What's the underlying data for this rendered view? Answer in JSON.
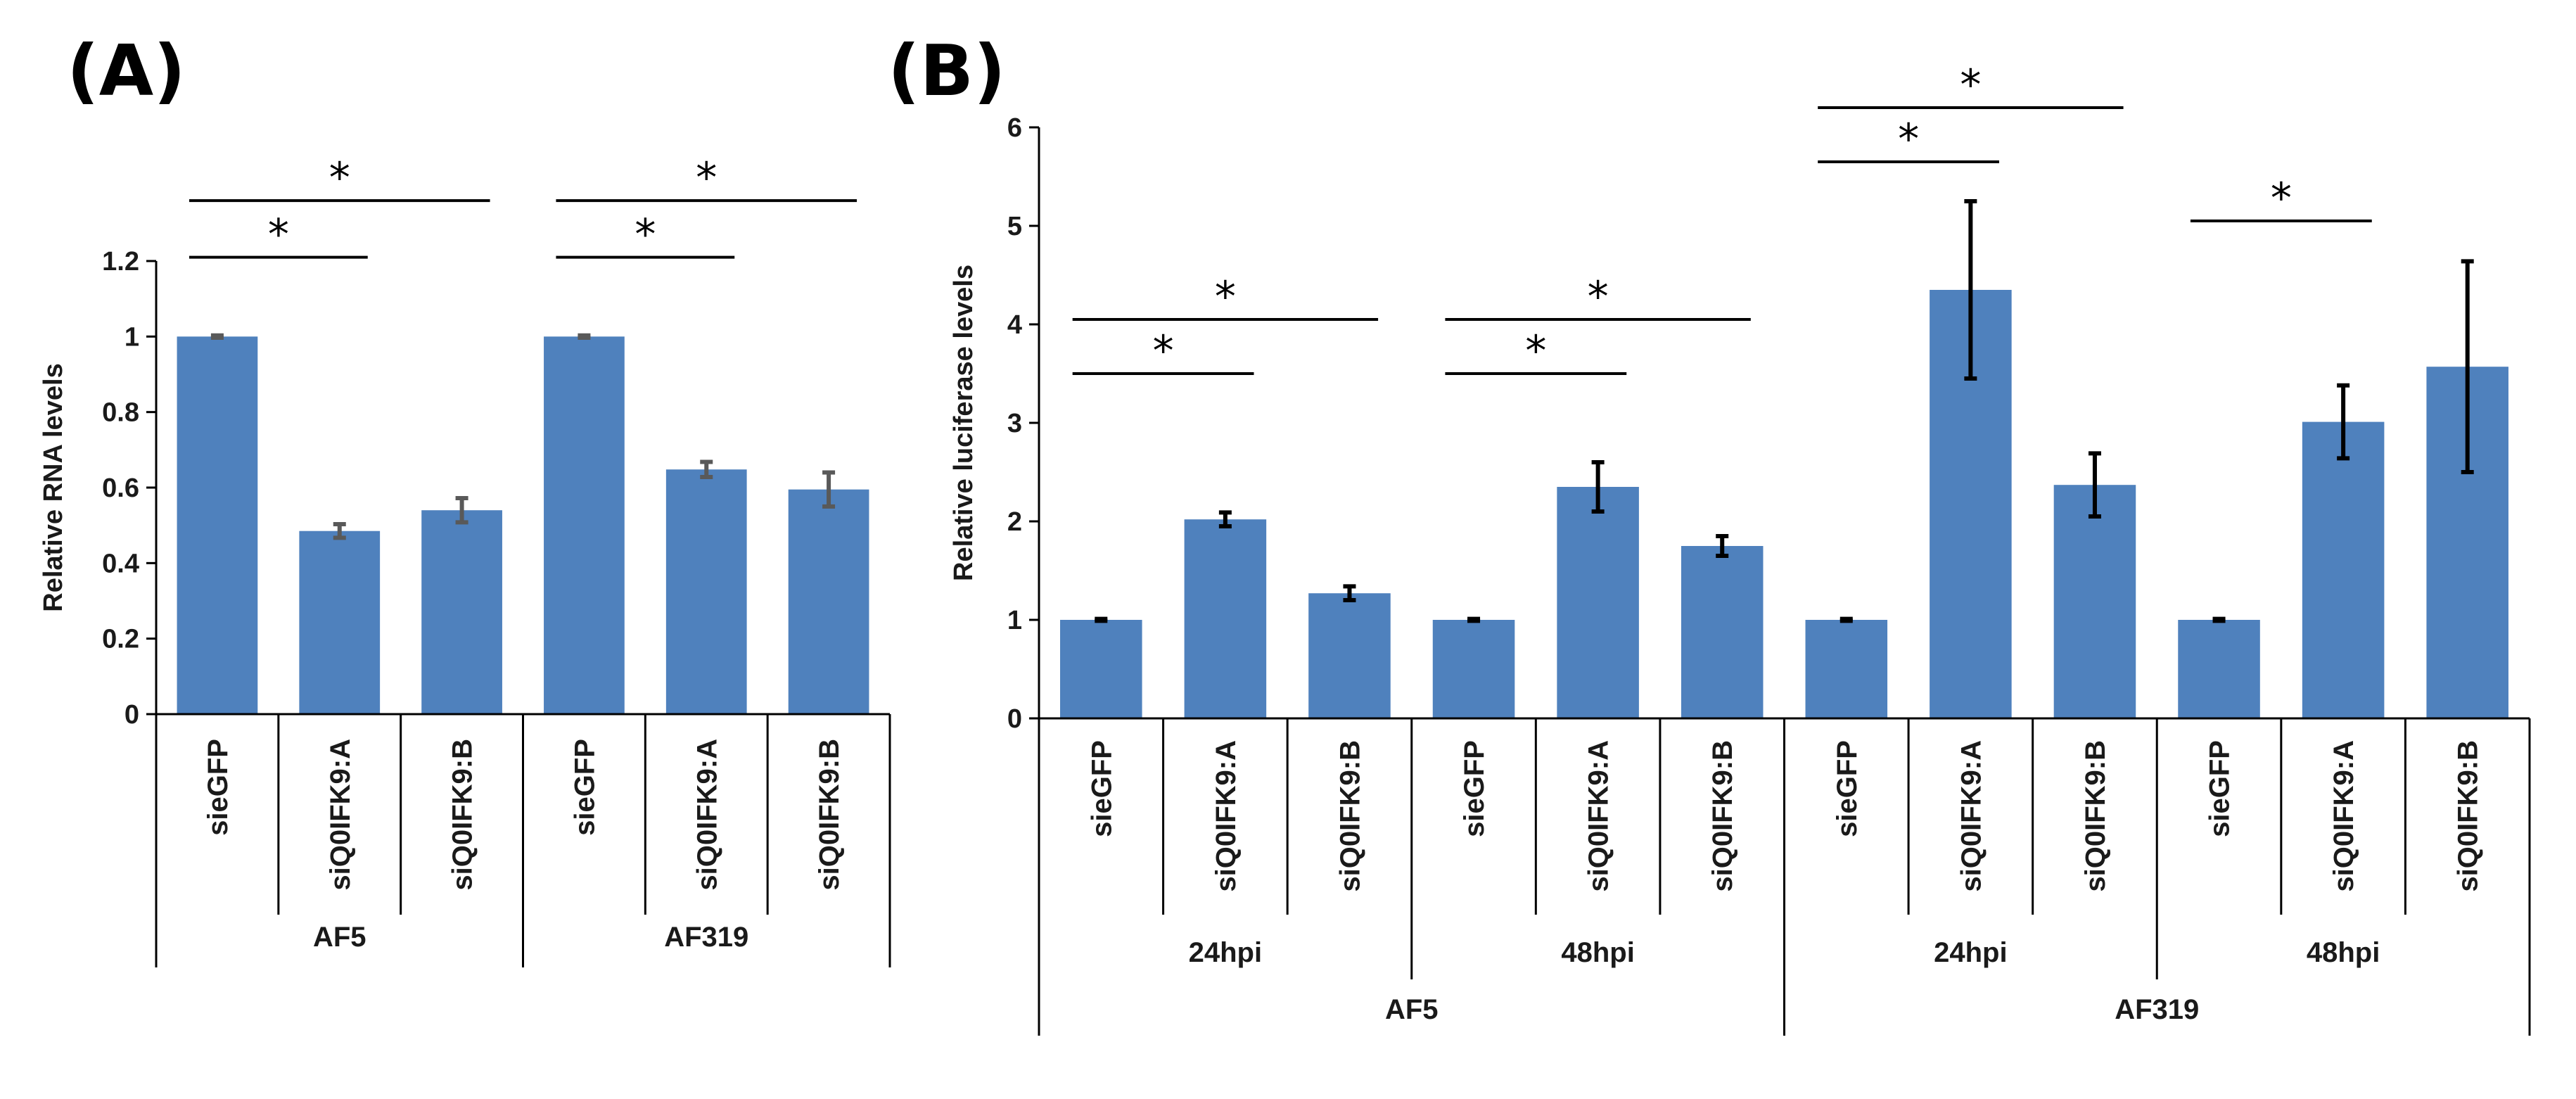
{
  "bar_color": "#4F81BD",
  "chart_data": [
    {
      "type": "bar",
      "panel_label": "(A)",
      "ylabel": "Relative RNA levels",
      "ylim": [
        0,
        1.2
      ],
      "yticks": [
        "0",
        "0.2",
        "0.4",
        "0.6",
        "0.8",
        "1",
        "1.2"
      ],
      "categories": [
        "sieGFP",
        "siQ0IFK9:A",
        "siQ0IFK9:B",
        "sieGFP",
        "siQ0IFK9:A",
        "siQ0IFK9:B"
      ],
      "values": [
        1.0,
        0.485,
        0.54,
        1.0,
        0.648,
        0.595
      ],
      "errors": [
        0.003,
        0.018,
        0.032,
        0.003,
        0.02,
        0.045
      ],
      "groups": [
        {
          "label": "AF5",
          "start": 0,
          "end": 2
        },
        {
          "label": "AF319",
          "start": 3,
          "end": 5
        }
      ],
      "significance": [
        {
          "from": 0,
          "to": 1,
          "label": "*",
          "y": 1.21
        },
        {
          "from": 0,
          "to": 2,
          "label": "*",
          "y": 1.36
        },
        {
          "from": 3,
          "to": 4,
          "label": "*",
          "y": 1.21
        },
        {
          "from": 3,
          "to": 5,
          "label": "*",
          "y": 1.36
        }
      ]
    },
    {
      "type": "bar",
      "panel_label": "(B)",
      "ylabel": "Relative luciferase levels",
      "ylim": [
        0,
        6
      ],
      "yticks": [
        "0",
        "1",
        "2",
        "3",
        "4",
        "5",
        "6"
      ],
      "categories": [
        "sieGFP",
        "siQ0IFK9:A",
        "siQ0IFK9:B",
        "sieGFP",
        "siQ0IFK9:A",
        "siQ0IFK9:B",
        "sieGFP",
        "siQ0IFK9:A",
        "siQ0IFK9:B",
        "sieGFP",
        "siQ0IFK9:A",
        "siQ0IFK9:B"
      ],
      "values": [
        1.0,
        2.02,
        1.27,
        1.0,
        2.35,
        1.75,
        1.0,
        4.35,
        2.37,
        1.0,
        3.01,
        3.57
      ],
      "errors": [
        0.01,
        0.07,
        0.07,
        0.01,
        0.25,
        0.1,
        0.01,
        0.9,
        0.32,
        0.01,
        0.37,
        1.07
      ],
      "subgroups": [
        {
          "label": "24hpi",
          "start": 0,
          "end": 2
        },
        {
          "label": "48hpi",
          "start": 3,
          "end": 5
        },
        {
          "label": "24hpi",
          "start": 6,
          "end": 8
        },
        {
          "label": "48hpi",
          "start": 9,
          "end": 11
        }
      ],
      "groups": [
        {
          "label": "AF5",
          "start": 0,
          "end": 5
        },
        {
          "label": "AF319",
          "start": 6,
          "end": 11
        }
      ],
      "significance": [
        {
          "from": 0,
          "to": 1,
          "label": "*",
          "y": 3.5
        },
        {
          "from": 0,
          "to": 2,
          "label": "*",
          "y": 4.05
        },
        {
          "from": 3,
          "to": 4,
          "label": "*",
          "y": 3.5
        },
        {
          "from": 3,
          "to": 5,
          "label": "*",
          "y": 4.05
        },
        {
          "from": 6,
          "to": 7,
          "label": "*",
          "y": 5.65
        },
        {
          "from": 6,
          "to": 8,
          "label": "*",
          "y": 6.2
        },
        {
          "from": 9,
          "to": 10,
          "label": "*",
          "y": 5.05
        }
      ]
    }
  ]
}
